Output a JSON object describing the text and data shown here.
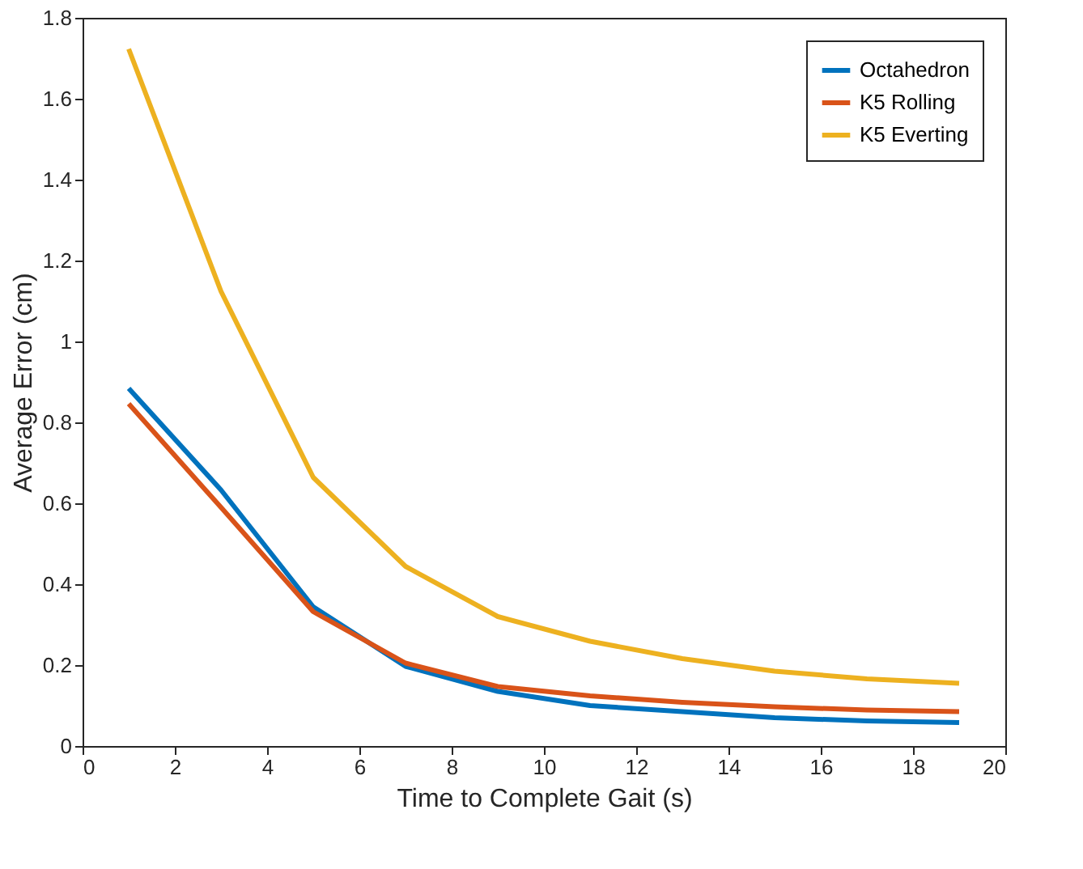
{
  "chart_data": {
    "type": "line",
    "xlabel": "Time to Complete Gait (s)",
    "ylabel": "Average Error (cm)",
    "x": [
      1,
      3,
      5,
      7,
      9,
      11,
      13,
      15,
      17,
      19
    ],
    "series": [
      {
        "name": "Octahedron",
        "color": "#0072bd",
        "values": [
          0.884,
          0.633,
          0.344,
          0.197,
          0.135,
          0.1,
          0.085,
          0.07,
          0.062,
          0.058
        ]
      },
      {
        "name": "K5 Rolling",
        "color": "#d95319",
        "values": [
          0.846,
          0.59,
          0.332,
          0.205,
          0.147,
          0.124,
          0.108,
          0.097,
          0.089,
          0.085
        ]
      },
      {
        "name": "K5 Everting",
        "color": "#edb120",
        "values": [
          1.723,
          1.124,
          0.664,
          0.444,
          0.32,
          0.259,
          0.216,
          0.185,
          0.166,
          0.155
        ]
      }
    ],
    "xlim": [
      0,
      20
    ],
    "xticks": [
      0,
      2,
      4,
      6,
      8,
      10,
      12,
      14,
      16,
      18,
      20
    ],
    "ylim": [
      0,
      1.8
    ],
    "yticks": [
      0,
      0.2,
      0.4,
      0.6,
      0.8,
      1,
      1.2,
      1.4,
      1.6,
      1.8
    ],
    "grid": false,
    "legend": "top right",
    "marker": "none",
    "line_style": "solid"
  }
}
